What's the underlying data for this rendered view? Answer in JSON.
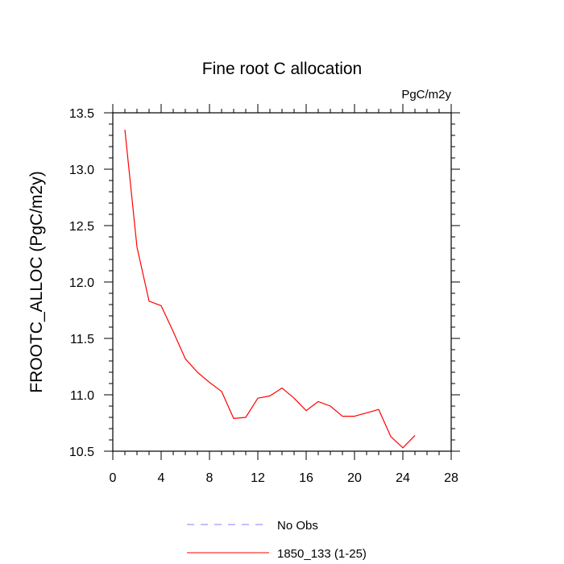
{
  "chart_data": {
    "type": "line",
    "title": "Fine root C allocation",
    "units_label": "PgC/m2y",
    "xlabel": "",
    "ylabel": "FROOTC_ALLOC  (PgC/m2y)",
    "xlim": [
      0,
      28
    ],
    "ylim": [
      10.5,
      13.5
    ],
    "xticks": [
      0,
      4,
      8,
      12,
      16,
      20,
      24,
      28
    ],
    "xtick_labels": [
      "0",
      "4",
      "8",
      "12",
      "16",
      "20",
      "24",
      "28"
    ],
    "yticks": [
      10.5,
      11.0,
      11.5,
      12.0,
      12.5,
      13.0,
      13.5
    ],
    "ytick_labels": [
      "10.5",
      "11.0",
      "11.5",
      "12.0",
      "12.5",
      "13.0",
      "13.5"
    ],
    "grid": false,
    "series": [
      {
        "name": "1850_133 (1-25)",
        "color": "#ff0000",
        "x": [
          1,
          2,
          3,
          4,
          5,
          6,
          7,
          8,
          9,
          10,
          11,
          12,
          13,
          14,
          15,
          16,
          17,
          18,
          19,
          20,
          21,
          22,
          23,
          24,
          25
        ],
        "y": [
          13.35,
          12.31,
          11.83,
          11.79,
          11.56,
          11.32,
          11.2,
          11.11,
          11.03,
          10.79,
          10.8,
          10.97,
          10.99,
          11.06,
          10.97,
          10.86,
          10.94,
          10.9,
          10.81,
          10.81,
          10.84,
          10.87,
          10.63,
          10.53,
          10.64
        ]
      }
    ],
    "legend": [
      {
        "label": "No Obs",
        "style": "dashed",
        "color": "#8080ff"
      },
      {
        "label": "1850_133 (1-25)",
        "style": "solid",
        "color": "#ff0000"
      }
    ],
    "legend_position": "bottom"
  }
}
